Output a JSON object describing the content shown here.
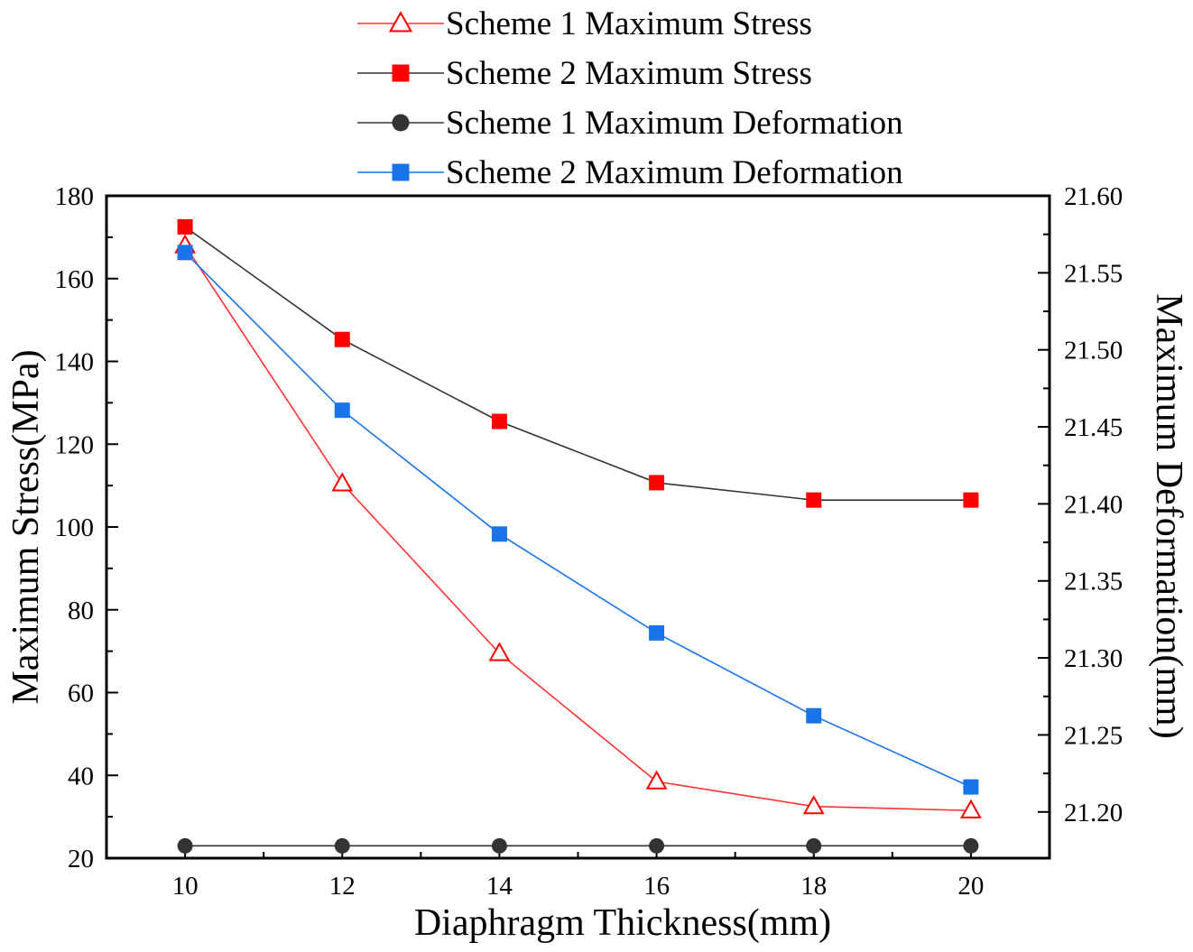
{
  "chart_data": {
    "type": "line",
    "xlabel": "Diaphragm Thickness(mm)",
    "ylabel": "Maximum Stress(MPa)",
    "y2label": "Maximum Deformation(mm)",
    "xlim": [
      9,
      21
    ],
    "ylim": [
      20,
      180
    ],
    "y2lim": [
      21.17,
      21.6
    ],
    "x_ticks": [
      10,
      12,
      14,
      16,
      18,
      20
    ],
    "y_ticks": [
      20,
      40,
      60,
      80,
      100,
      120,
      140,
      160,
      180
    ],
    "y2_ticks": [
      "21.20",
      "21.25",
      "21.30",
      "21.35",
      "21.40",
      "21.45",
      "21.50",
      "21.55",
      "21.60"
    ],
    "legend_position": "top-center",
    "x": [
      10,
      12,
      14,
      16,
      18,
      20
    ],
    "series": [
      {
        "name": "Scheme 1 Maximum Stress",
        "axis": "left",
        "marker": "triangle-open",
        "color": "#ff0000",
        "line_color": "#ff3333",
        "values": [
          168,
          110.5,
          69.5,
          38.5,
          32.5,
          31.5
        ]
      },
      {
        "name": "Scheme 2 Maximum Stress",
        "axis": "left",
        "marker": "square",
        "color": "#ff0000",
        "line_color": "#333333",
        "values": [
          172.5,
          145.3,
          125.5,
          110.7,
          106.5,
          106.5
        ]
      },
      {
        "name": "Scheme 1 Maximum Deformation",
        "axis": "left",
        "marker": "circle",
        "color": "#333333",
        "line_color": "#333333",
        "values": [
          21.5,
          21.5,
          21.5,
          21.5,
          21.5,
          21.5
        ]
      },
      {
        "name": "Scheme 2 Maximum Deformation",
        "axis": "left",
        "marker": "square",
        "color": "#1874e8",
        "line_color": "#1874e8",
        "values": [
          166.3,
          128.2,
          98.3,
          74.4,
          54.4,
          37.2
        ]
      }
    ]
  }
}
